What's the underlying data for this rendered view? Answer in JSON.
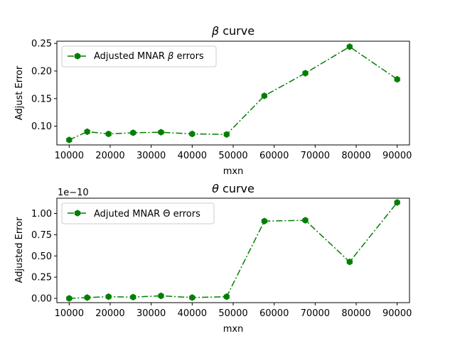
{
  "chart_data": [
    {
      "type": "line",
      "title_prefix": "β",
      "title_suffix": " curve",
      "xlabel": "mxn",
      "ylabel": "Adjust Error",
      "xlim": [
        7000,
        93000
      ],
      "ylim": [
        0.066,
        0.254
      ],
      "xticks": [
        10000,
        20000,
        30000,
        40000,
        50000,
        60000,
        70000,
        80000,
        90000
      ],
      "yticks": [
        0.1,
        0.15,
        0.2,
        0.25
      ],
      "ytick_labels": [
        "0.10",
        "0.15",
        "0.20",
        "0.25"
      ],
      "offset_text": "",
      "grid": false,
      "legend_placement": "upper-left",
      "series": [
        {
          "name_prefix": "Adjusted MNAR ",
          "name_symbol": "β",
          "name_suffix": " errors",
          "color": "#007f00",
          "line_style": "dash-dot",
          "marker": "hexagon",
          "x": [
            10000,
            14400,
            19600,
            25600,
            32400,
            40000,
            48400,
            57600,
            67600,
            78400,
            90000
          ],
          "y": [
            0.075,
            0.09,
            0.086,
            0.088,
            0.089,
            0.086,
            0.085,
            0.155,
            0.196,
            0.244,
            0.185
          ]
        }
      ]
    },
    {
      "type": "line",
      "title_prefix": "θ",
      "title_suffix": " curve",
      "xlabel": "mxn",
      "ylabel": "Adjusted Error",
      "xlim": [
        7000,
        93000
      ],
      "ylim": [
        -0.05,
        1.18
      ],
      "xticks": [
        10000,
        20000,
        30000,
        40000,
        50000,
        60000,
        70000,
        80000,
        90000
      ],
      "yticks": [
        0.0,
        0.25,
        0.5,
        0.75,
        1.0
      ],
      "ytick_labels": [
        "0.00",
        "0.25",
        "0.50",
        "0.75",
        "1.00"
      ],
      "offset_text": "1e−10",
      "grid": false,
      "legend_placement": "upper-left",
      "series": [
        {
          "name_prefix": "Adjuted MNAR ",
          "name_symbol": "Θ",
          "name_suffix": " errors",
          "color": "#007f00",
          "line_style": "dash-dot",
          "marker": "hexagon",
          "x": [
            10000,
            14400,
            19600,
            25600,
            32400,
            40000,
            48400,
            57600,
            67600,
            78400,
            90000
          ],
          "y": [
            0.0,
            0.01,
            0.02,
            0.015,
            0.03,
            0.01,
            0.02,
            0.91,
            0.92,
            0.43,
            1.13
          ]
        }
      ]
    }
  ]
}
